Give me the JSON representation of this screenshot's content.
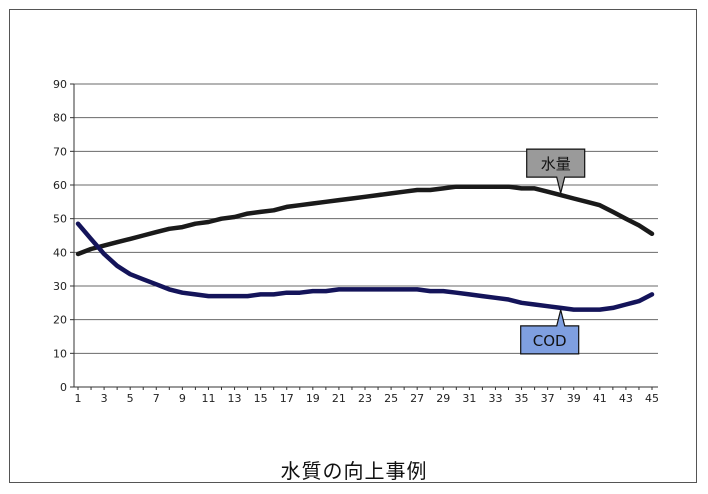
{
  "caption": "水質の向上事例",
  "colors": {
    "water_line": "#1a1a1a",
    "cod_line": "#14145a",
    "water_callout_fill": "#9a9a9a",
    "cod_callout_fill": "#7f9fe0",
    "grid": "#6a6a6a"
  },
  "chart_data": {
    "type": "line",
    "title": "",
    "xlabel": "",
    "ylabel": "",
    "x": [
      1,
      2,
      3,
      4,
      5,
      6,
      7,
      8,
      9,
      10,
      11,
      12,
      13,
      14,
      15,
      16,
      17,
      18,
      19,
      20,
      21,
      22,
      23,
      24,
      25,
      26,
      27,
      28,
      29,
      30,
      31,
      32,
      33,
      34,
      35,
      36,
      37,
      38,
      39,
      40,
      41,
      42,
      43,
      44,
      45
    ],
    "x_tick_labels": [
      "1",
      "3",
      "5",
      "7",
      "9",
      "11",
      "13",
      "15",
      "17",
      "19",
      "21",
      "23",
      "25",
      "27",
      "29",
      "31",
      "33",
      "35",
      "37",
      "39",
      "41",
      "43",
      "45"
    ],
    "ylim": [
      0,
      90
    ],
    "y_ticks": [
      0,
      10,
      20,
      30,
      40,
      50,
      60,
      70,
      80,
      90
    ],
    "grid": true,
    "series": [
      {
        "name": "水量",
        "values": [
          39.5,
          41,
          42,
          43,
          44,
          45,
          46,
          47,
          47.5,
          48.5,
          49,
          50,
          50.5,
          51.5,
          52,
          52.5,
          53.5,
          54,
          54.5,
          55,
          55.5,
          56,
          56.5,
          57,
          57.5,
          58,
          58.5,
          58.5,
          59,
          59.5,
          59.5,
          59.5,
          59.5,
          59.5,
          59,
          59,
          58,
          57,
          56,
          55,
          54,
          52,
          50,
          48,
          45.5
        ]
      },
      {
        "name": "COD",
        "values": [
          48.5,
          44,
          39.5,
          36,
          33.5,
          32,
          30.5,
          29,
          28,
          27.5,
          27,
          27,
          27,
          27,
          27.5,
          27.5,
          28,
          28,
          28.5,
          28.5,
          29,
          29,
          29,
          29,
          29,
          29,
          29,
          28.5,
          28.5,
          28,
          27.5,
          27,
          26.5,
          26,
          25,
          24.5,
          24,
          23.5,
          23,
          23,
          23,
          23.5,
          24.5,
          25.5,
          27.5
        ]
      }
    ]
  }
}
